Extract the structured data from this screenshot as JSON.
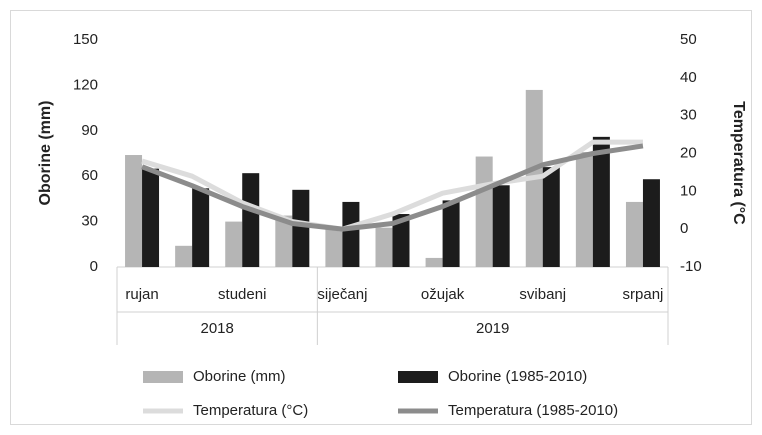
{
  "chart_data": {
    "type": "bar-line",
    "categories": [
      "rujan",
      null,
      "studeni",
      null,
      "siječanj",
      null,
      "ožujak",
      null,
      "svibanj",
      null,
      "srpanj"
    ],
    "category_groups": [
      "2018",
      "2018",
      "2018",
      "2018",
      "2019",
      "2019",
      "2019",
      "2019",
      "2019",
      "2019",
      "2019"
    ],
    "ylabel": "Oborine (mm)",
    "y2label": "Temperatura (°C",
    "ylim": [
      0,
      150
    ],
    "yticks": [
      0,
      30,
      60,
      90,
      120,
      150
    ],
    "y2lim": [
      -10,
      50
    ],
    "y2ticks": [
      -10,
      0,
      10,
      20,
      30,
      40,
      50
    ],
    "series": [
      {
        "name": "Oborine (mm)",
        "type": "bar",
        "color": "#b5b5b5",
        "values": [
          74,
          14,
          30,
          34,
          26,
          26,
          6,
          73,
          117,
          76,
          43
        ]
      },
      {
        "name": "Oborine (1985-2010)",
        "type": "bar",
        "color": "#1c1c1c",
        "values": [
          65,
          52,
          62,
          51,
          43,
          35,
          44,
          54,
          66,
          86,
          58
        ]
      },
      {
        "name": "Temperatura (°C)",
        "type": "line",
        "axis": "y2",
        "color": "#dcdcdc",
        "values": [
          18,
          14,
          7,
          2,
          0,
          4,
          9.5,
          12,
          14,
          23,
          23
        ]
      },
      {
        "name": "Temperatura (1985-2010)",
        "type": "line",
        "axis": "y2",
        "color": "#8c8c8c",
        "values": [
          16.5,
          11.5,
          6,
          1.5,
          0,
          1.5,
          6,
          11.5,
          17,
          20,
          22
        ]
      }
    ]
  }
}
